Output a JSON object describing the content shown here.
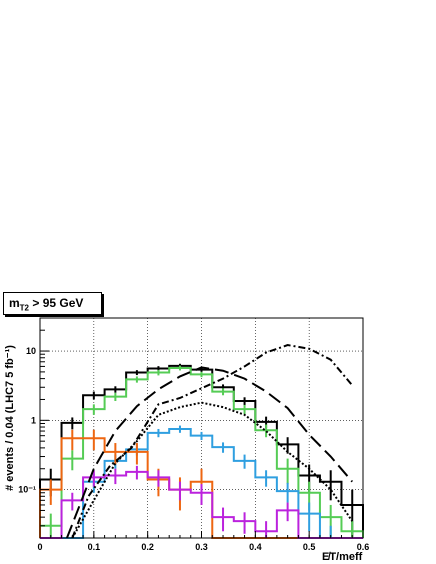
{
  "cut_label": {
    "var": "m",
    "sub": "T2",
    "rest": " > 95 GeV"
  },
  "chart_data": {
    "type": "histogram",
    "title": "",
    "xlabel": "E̸T/meff",
    "ylabel": "# events / 0.04  (LHC7 5 fb⁻¹)",
    "xlim": [
      0,
      0.6
    ],
    "ylim": [
      0.02,
      30
    ],
    "yscale": "log",
    "grid": true,
    "bin_edges": [
      0.0,
      0.04,
      0.08,
      0.12,
      0.16,
      0.2,
      0.24,
      0.28,
      0.32,
      0.36,
      0.4,
      0.44,
      0.48,
      0.52,
      0.56,
      0.6
    ],
    "x_ticks": [
      "0",
      "0.1",
      "0.2",
      "0.3",
      "0.4",
      "0.5",
      "0.6"
    ],
    "y_ticks": [
      "10⁻¹",
      "1",
      "10"
    ],
    "series": [
      {
        "style": "hist",
        "color": "#000000",
        "width": 2,
        "values": [
          0.14,
          0.92,
          2.3,
          2.8,
          4.9,
          5.6,
          6.1,
          5.4,
          3.0,
          1.9,
          0.95,
          0.45,
          0.16,
          0.13,
          0.06
        ],
        "errors": [
          0.06,
          0.18,
          0.3,
          0.3,
          0.4,
          0.45,
          0.45,
          0.4,
          0.3,
          0.25,
          0.18,
          0.12,
          0.07,
          0.06,
          0.04
        ]
      },
      {
        "style": "hist",
        "color": "#55cc55",
        "width": 2,
        "values": [
          0.03,
          0.28,
          1.45,
          2.2,
          3.9,
          4.9,
          5.7,
          4.6,
          2.6,
          1.45,
          0.72,
          0.2,
          0.09,
          0.04,
          0.025
        ],
        "errors": [
          0.015,
          0.09,
          0.25,
          0.3,
          0.4,
          0.45,
          0.45,
          0.4,
          0.3,
          0.22,
          0.15,
          0.08,
          0.04,
          0.02,
          0.01
        ]
      },
      {
        "style": "hist",
        "color": "#2f9fe0",
        "width": 2,
        "values": [
          0.0,
          0.0,
          0.13,
          0.26,
          0.38,
          0.66,
          0.75,
          0.6,
          0.41,
          0.26,
          0.15,
          0.095,
          0.045,
          0.02,
          0.0
        ],
        "errors": [
          0,
          0,
          0.04,
          0.06,
          0.07,
          0.09,
          0.09,
          0.08,
          0.07,
          0.06,
          0.04,
          0.03,
          0.02,
          0.01,
          0
        ]
      },
      {
        "style": "hist",
        "color": "#ee6611",
        "width": 2,
        "values": [
          0.1,
          0.55,
          0.55,
          0.35,
          0.35,
          0.14,
          0.1,
          0.13,
          0.0,
          0.0,
          0.0,
          0.0,
          0.0,
          0.0,
          0.0
        ],
        "errors": [
          0.04,
          0.18,
          0.18,
          0.12,
          0.12,
          0.06,
          0.05,
          0.07,
          0,
          0,
          0,
          0,
          0,
          0,
          0
        ]
      },
      {
        "style": "hist",
        "color": "#bb22dd",
        "width": 2,
        "values": [
          0.0,
          0.07,
          0.15,
          0.16,
          0.18,
          0.15,
          0.1,
          0.09,
          0.04,
          0.035,
          0.025,
          0.05,
          0.0,
          0.0,
          0.0
        ],
        "errors": [
          0,
          0.02,
          0.04,
          0.04,
          0.04,
          0.04,
          0.03,
          0.03,
          0.015,
          0.012,
          0.01,
          0.015,
          0,
          0,
          0
        ]
      },
      {
        "style": "line",
        "dash": "14,6",
        "color": "#000000",
        "width": 2,
        "points": [
          [
            0.05,
            0.02
          ],
          [
            0.07,
            0.05
          ],
          [
            0.1,
            0.2
          ],
          [
            0.14,
            0.7
          ],
          [
            0.18,
            1.6
          ],
          [
            0.22,
            2.8
          ],
          [
            0.26,
            4.3
          ],
          [
            0.3,
            5.8
          ],
          [
            0.34,
            5.2
          ],
          [
            0.38,
            4.0
          ],
          [
            0.42,
            2.6
          ],
          [
            0.46,
            1.5
          ],
          [
            0.5,
            0.62
          ],
          [
            0.54,
            0.3
          ],
          [
            0.58,
            0.13
          ]
        ]
      },
      {
        "style": "line",
        "dash": "7,3,2,3",
        "color": "#000000",
        "width": 2,
        "points": [
          [
            0.06,
            0.02
          ],
          [
            0.09,
            0.08
          ],
          [
            0.13,
            0.22
          ],
          [
            0.17,
            0.4
          ],
          [
            0.22,
            1.7
          ],
          [
            0.26,
            2.1
          ],
          [
            0.3,
            2.9
          ],
          [
            0.34,
            4.0
          ],
          [
            0.38,
            6.0
          ],
          [
            0.42,
            9.5
          ],
          [
            0.46,
            12.2
          ],
          [
            0.5,
            10.8
          ],
          [
            0.54,
            7.5
          ],
          [
            0.58,
            3.2
          ]
        ]
      },
      {
        "style": "line",
        "dash": "2,2",
        "color": "#000000",
        "width": 2,
        "points": [
          [
            0.06,
            0.02
          ],
          [
            0.1,
            0.07
          ],
          [
            0.14,
            0.24
          ],
          [
            0.18,
            0.5
          ],
          [
            0.22,
            1.2
          ],
          [
            0.26,
            1.55
          ],
          [
            0.3,
            1.8
          ],
          [
            0.34,
            1.55
          ],
          [
            0.38,
            1.2
          ],
          [
            0.42,
            0.7
          ],
          [
            0.46,
            0.35
          ],
          [
            0.5,
            0.2
          ],
          [
            0.54,
            0.1
          ],
          [
            0.58,
            0.035
          ]
        ]
      }
    ]
  }
}
